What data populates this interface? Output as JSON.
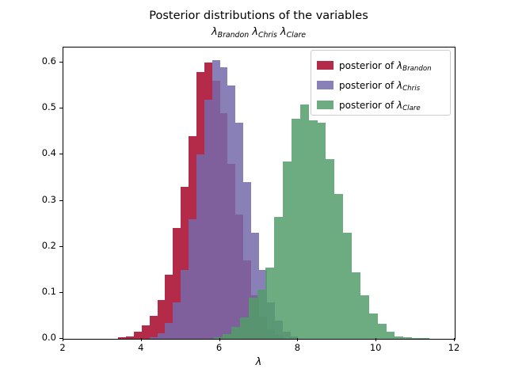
{
  "figure": {
    "title": "Posterior distributions of the variables",
    "subtitle_variables": [
      "Brandon",
      "Chris",
      "Clare"
    ],
    "lambda_char": "λ",
    "background": "#ffffff"
  },
  "chart_data": {
    "type": "bar",
    "subtype": "histogram-overlaid",
    "title": "Posterior distributions of the variables",
    "subtitle": "λ_Brandon λ_Chris λ_Clare",
    "xlabel": "λ",
    "ylabel": "",
    "xlim": [
      2,
      12
    ],
    "ylim": [
      0,
      0.633
    ],
    "grid": false,
    "x_ticks": [
      2,
      4,
      6,
      8,
      10,
      12
    ],
    "x_tick_labels": [
      "2",
      "4",
      "6",
      "8",
      "10",
      "12"
    ],
    "y_ticks": [
      0.0,
      0.1,
      0.2,
      0.3,
      0.4,
      0.5,
      0.6
    ],
    "y_tick_labels": [
      "0.0",
      "0.1",
      "0.2",
      "0.3",
      "0.4",
      "0.5",
      "0.6"
    ],
    "legend": {
      "position": "upper right",
      "label_prefix": "posterior of ",
      "border_color": "#cccccc"
    },
    "series": [
      {
        "variable": "Brandon",
        "full_label": "posterior of λ_Brandon",
        "color": "#A60628",
        "color_rgb": [
          166,
          6,
          40
        ],
        "alpha": 0.85,
        "bin_start": 3.4,
        "bin_width": 0.2,
        "heights": [
          0.003,
          0.006,
          0.015,
          0.03,
          0.05,
          0.085,
          0.14,
          0.24,
          0.33,
          0.44,
          0.58,
          0.6,
          0.56,
          0.49,
          0.38,
          0.27,
          0.17,
          0.095,
          0.048,
          0.02,
          0.008
        ]
      },
      {
        "variable": "Chris",
        "full_label": "posterior of λ_Chris",
        "color": "#766AAB",
        "color_rgb": [
          118,
          106,
          171
        ],
        "alpha": 0.85,
        "bin_start": 4.2,
        "bin_width": 0.2,
        "heights": [
          0.004,
          0.012,
          0.035,
          0.08,
          0.15,
          0.26,
          0.4,
          0.52,
          0.605,
          0.59,
          0.55,
          0.47,
          0.34,
          0.23,
          0.15,
          0.08,
          0.04,
          0.015,
          0.005
        ]
      },
      {
        "variable": "Clare",
        "full_label": "posterior of λ_Clare",
        "color": "#529E6A",
        "color_rgb": [
          82,
          158,
          106
        ],
        "alpha": 0.85,
        "bin_start": 5.85,
        "bin_width": 0.22,
        "heights": [
          0.004,
          0.011,
          0.025,
          0.046,
          0.09,
          0.107,
          0.155,
          0.265,
          0.385,
          0.478,
          0.51,
          0.475,
          0.47,
          0.39,
          0.315,
          0.23,
          0.145,
          0.095,
          0.055,
          0.032,
          0.016,
          0.006,
          0.003,
          0.0015,
          0.001
        ]
      }
    ]
  }
}
